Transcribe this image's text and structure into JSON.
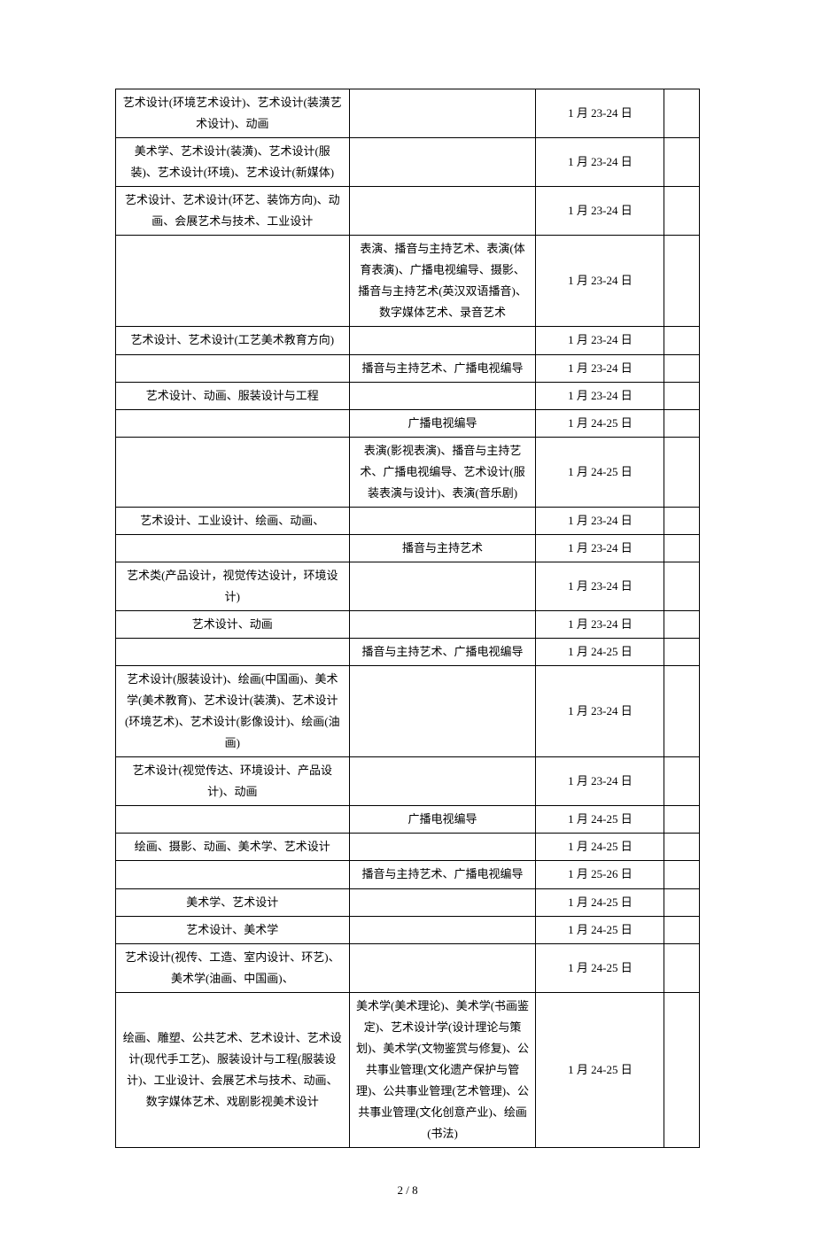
{
  "table": {
    "columns": [
      "col1",
      "col2",
      "col3",
      "col4"
    ],
    "col_widths_pct": [
      40,
      32,
      22,
      6
    ],
    "border_color": "#000000",
    "background_color": "#ffffff",
    "font_family": "SimSun",
    "font_size_pt": 10,
    "text_color": "#000000",
    "alignment": "center",
    "rows": [
      {
        "c1": "艺术设计(环境艺术设计)、艺术设计(装潢艺术设计)、动画",
        "c2": "",
        "c3": "1 月 23-24 日",
        "c4": ""
      },
      {
        "c1": "美术学、艺术设计(装潢)、艺术设计(服装)、艺术设计(环境)、艺术设计(新媒体)",
        "c2": "",
        "c3": "1 月 23-24 日",
        "c4": ""
      },
      {
        "c1": "艺术设计、艺术设计(环艺、装饰方向)、动画、会展艺术与技术、工业设计",
        "c2": "",
        "c3": "1 月 23-24 日",
        "c4": ""
      },
      {
        "c1": "",
        "c2": "表演、播音与主持艺术、表演(体育表演)、广播电视编导、摄影、播音与主持艺术(英汉双语播音)、数字媒体艺术、录音艺术",
        "c3": "1 月 23-24 日",
        "c4": ""
      },
      {
        "c1": "艺术设计、艺术设计(工艺美术教育方向)",
        "c2": "",
        "c3": "1 月 23-24 日",
        "c4": ""
      },
      {
        "c1": "",
        "c2": "播音与主持艺术、广播电视编导",
        "c3": "1 月 23-24 日",
        "c4": ""
      },
      {
        "c1": "艺术设计、动画、服装设计与工程",
        "c2": "",
        "c3": "1 月 23-24 日",
        "c4": ""
      },
      {
        "c1": "",
        "c2": "广播电视编导",
        "c3": "1 月 24-25 日",
        "c4": ""
      },
      {
        "c1": "",
        "c2": "表演(影视表演)、播音与主持艺术、广播电视编导、艺术设计(服装表演与设计)、表演(音乐剧)",
        "c3": "1 月 24-25 日",
        "c4": ""
      },
      {
        "c1": "艺术设计、工业设计、绘画、动画、",
        "c2": "",
        "c3": "1 月 23-24 日",
        "c4": ""
      },
      {
        "c1": "",
        "c2": "播音与主持艺术",
        "c3": "1 月 23-24 日",
        "c4": ""
      },
      {
        "c1": "艺术类(产品设计，视觉传达设计，环境设计)",
        "c2": "",
        "c3": "1 月 23-24 日",
        "c4": ""
      },
      {
        "c1": "艺术设计、动画",
        "c2": "",
        "c3": "1 月 23-24 日",
        "c4": ""
      },
      {
        "c1": "",
        "c2": "播音与主持艺术、广播电视编导",
        "c3": "1 月 24-25 日",
        "c4": ""
      },
      {
        "c1": "艺术设计(服装设计)、绘画(中国画)、美术学(美术教育)、艺术设计(装潢)、艺术设计(环境艺术)、艺术设计(影像设计)、绘画(油画)",
        "c2": "",
        "c3": "1 月 23-24 日",
        "c4": ""
      },
      {
        "c1": "艺术设计(视觉传达、环境设计、产品设计)、动画",
        "c2": "",
        "c3": "1 月 23-24 日",
        "c4": ""
      },
      {
        "c1": "",
        "c2": "广播电视编导",
        "c3": "1 月 24-25 日",
        "c4": ""
      },
      {
        "c1": "绘画、摄影、动画、美术学、艺术设计",
        "c2": "",
        "c3": "1 月 24-25 日",
        "c4": ""
      },
      {
        "c1": "",
        "c2": "播音与主持艺术、广播电视编导",
        "c3": "1 月 25-26 日",
        "c4": ""
      },
      {
        "c1": "美术学、艺术设计",
        "c2": "",
        "c3": "1 月 24-25 日",
        "c4": ""
      },
      {
        "c1": "艺术设计、美术学",
        "c2": "",
        "c3": "1 月 24-25 日",
        "c4": ""
      },
      {
        "c1": "艺术设计(视传、工造、室内设计、环艺)、美术学(油画、中国画)、",
        "c2": "",
        "c3": "1 月 24-25 日",
        "c4": ""
      },
      {
        "c1": "绘画、雕塑、公共艺术、艺术设计、艺术设计(现代手工艺)、服装设计与工程(服装设计)、工业设计、会展艺术与技术、动画、数字媒体艺术、戏剧影视美术设计",
        "c2": "美术学(美术理论)、美术学(书画鉴定)、艺术设计学(设计理论与策划)、美术学(文物鉴赏与修复)、公共事业管理(文化遗产保护与管理)、公共事业管理(艺术管理)、公共事业管理(文化创意产业)、绘画(书法)",
        "c3": "1 月 24-25 日",
        "c4": ""
      }
    ]
  },
  "footer": {
    "page_current": "2",
    "page_total": "8",
    "separator": " / "
  }
}
